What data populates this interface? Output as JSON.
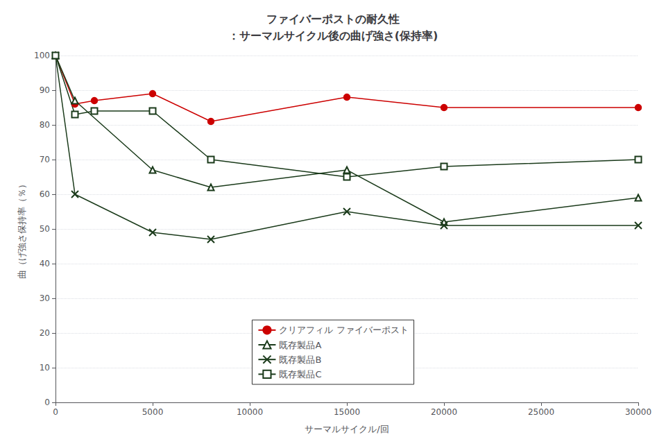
{
  "chart_data": {
    "type": "line",
    "title": "ファイバーポストの耐久性\n：サーマルサイクル後の曲げ強さ(保持率)",
    "x_label": "サーマルサイクル/回",
    "y_label": "曲（げ強さ保持率（％）",
    "xlim": [
      0,
      30000
    ],
    "ylim": [
      0,
      100
    ],
    "xticks": [
      0,
      5000,
      10000,
      15000,
      20000,
      25000,
      30000
    ],
    "yticks": [
      0,
      10,
      20,
      30,
      40,
      50,
      60,
      70,
      80,
      90,
      100
    ],
    "grid": true,
    "legend": "lower center",
    "series": [
      {
        "name": "クリアフィル ファイバーポスト",
        "color": "#cc0000",
        "marker": "circle",
        "x": [
          0,
          1000,
          2000,
          5000,
          8000,
          15000,
          20000,
          30000
        ],
        "values": [
          100,
          86,
          87,
          89,
          81,
          88,
          85,
          85
        ]
      },
      {
        "name": "既存製品A",
        "color": "#1a3a1a",
        "marker": "triangle-open",
        "x": [
          0,
          1000,
          5000,
          8000,
          15000,
          20000,
          30000
        ],
        "values": [
          100,
          87,
          67,
          62,
          67,
          52,
          59
        ]
      },
      {
        "name": "既存製品B",
        "color": "#1a3a1a",
        "marker": "x",
        "x": [
          0,
          1000,
          5000,
          8000,
          15000,
          20000,
          30000
        ],
        "values": [
          100,
          60,
          49,
          47,
          55,
          51,
          51
        ]
      },
      {
        "name": "既存製品C",
        "color": "#1a3a1a",
        "marker": "square-open",
        "x": [
          0,
          1000,
          2000,
          5000,
          8000,
          15000,
          20000,
          30000
        ],
        "values": [
          100,
          83,
          84,
          84,
          70,
          65,
          68,
          70
        ]
      }
    ]
  }
}
